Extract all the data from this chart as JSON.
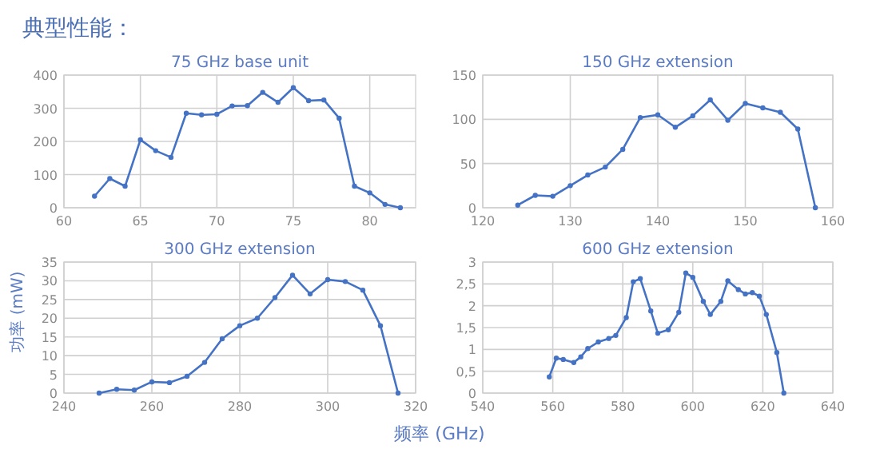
{
  "chart_data": [
    {
      "type": "line",
      "title": "75 GHz base unit",
      "annotations": [
        "典型性能："
      ],
      "marker": "circle",
      "grid": true,
      "color": "#4472c4",
      "x": [
        62,
        63,
        64,
        65,
        66,
        67,
        68,
        69,
        70,
        71,
        72,
        73,
        74,
        75,
        76,
        77,
        78,
        79,
        80,
        81,
        82
      ],
      "values": [
        35,
        88,
        65,
        205,
        172,
        152,
        285,
        280,
        282,
        307,
        308,
        348,
        318,
        362,
        323,
        325,
        270,
        65,
        45,
        10,
        0
      ],
      "xlim": [
        60,
        83
      ],
      "xticks": [
        60,
        65,
        70,
        75,
        80
      ],
      "ylim": [
        0,
        400
      ],
      "yticks": [
        0,
        100,
        200,
        300,
        400
      ]
    },
    {
      "type": "line",
      "title": "150 GHz extension",
      "marker": "circle",
      "grid": true,
      "color": "#4472c4",
      "x": [
        124,
        126,
        128,
        130,
        132,
        134,
        136,
        138,
        140,
        142,
        144,
        146,
        148,
        150,
        152,
        154,
        156,
        158
      ],
      "values": [
        3,
        14,
        13,
        25,
        37,
        46,
        66,
        102,
        105,
        91,
        104,
        122,
        99,
        118,
        113,
        108,
        89,
        0
      ],
      "xlim": [
        120,
        160
      ],
      "xticks": [
        120,
        130,
        140,
        150,
        160
      ],
      "ylim": [
        0,
        150
      ],
      "yticks": [
        0,
        50,
        100,
        150
      ]
    },
    {
      "type": "line",
      "title": "300 GHz extension",
      "ylabel": "功率 (mW)",
      "marker": "circle",
      "grid": true,
      "color": "#4472c4",
      "x": [
        248,
        252,
        256,
        260,
        264,
        268,
        272,
        276,
        280,
        284,
        288,
        292,
        296,
        300,
        304,
        308,
        312,
        316
      ],
      "values": [
        0,
        1,
        0.8,
        3,
        2.8,
        4.5,
        8.2,
        14.5,
        18,
        20,
        25.5,
        31.5,
        26.5,
        30.3,
        29.8,
        27.5,
        18,
        0
      ],
      "xlim": [
        240,
        320
      ],
      "xticks": [
        240,
        260,
        280,
        300,
        320
      ],
      "ylim": [
        0,
        35
      ],
      "yticks": [
        0,
        5,
        10,
        15,
        20,
        25,
        30,
        35
      ]
    },
    {
      "type": "line",
      "title": "600 GHz extension",
      "xlabel": "频率 (GHz)",
      "marker": "circle",
      "grid": true,
      "color": "#4472c4",
      "x": [
        559,
        561,
        563,
        566,
        568,
        570,
        573,
        576,
        578,
        581,
        583,
        585,
        588,
        590,
        593,
        596,
        598,
        600,
        603,
        605,
        608,
        610,
        613,
        615,
        617,
        619,
        621,
        624,
        626
      ],
      "values": [
        0.37,
        0.8,
        0.77,
        0.7,
        0.83,
        1.02,
        1.17,
        1.25,
        1.32,
        1.73,
        2.55,
        2.62,
        1.88,
        1.37,
        1.45,
        1.85,
        2.75,
        2.65,
        2.1,
        1.8,
        2.1,
        2.57,
        2.37,
        2.27,
        2.3,
        2.22,
        1.8,
        0.93,
        0
      ],
      "xlim": [
        540,
        640
      ],
      "xticks": [
        540,
        560,
        580,
        600,
        620,
        640
      ],
      "ylim": [
        0,
        3
      ],
      "yticks": [
        0,
        {
          "value": 0.5,
          "label": "0,5"
        },
        1,
        {
          "value": 1.5,
          "label": "1,5"
        },
        2,
        {
          "value": 2.5,
          "label": "2,5"
        },
        3
      ]
    }
  ]
}
